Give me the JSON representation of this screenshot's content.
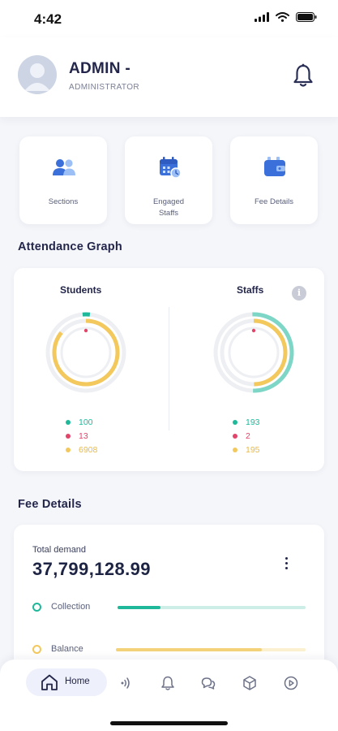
{
  "status_bar": {
    "time": "4:42"
  },
  "header": {
    "name": "ADMIN -",
    "role": "ADMINISTRATOR"
  },
  "quick_actions": [
    {
      "label": "Sections",
      "icon": "users-icon"
    },
    {
      "label": "Engaged Staffs",
      "icon": "calendar-clock-icon"
    },
    {
      "label": "Fee Details",
      "icon": "wallet-icon"
    }
  ],
  "attendance": {
    "title": "Attendance Graph",
    "students": {
      "label": "Students",
      "present": "100",
      "absent": "13",
      "other": "6908"
    },
    "staffs": {
      "label": "Staffs",
      "present": "193",
      "absent": "2",
      "other": "195"
    },
    "colors": {
      "present": "#1fb89a",
      "absent": "#e2456a",
      "other": "#f3c85c",
      "track": "#eeeff3"
    }
  },
  "fees": {
    "title": "Fee Details",
    "total_label": "Total demand",
    "total_amount": "37,799,128.99",
    "collection": {
      "label": "Collection",
      "fraction": 0.23
    },
    "balance": {
      "label": "Balance",
      "fraction": 0.77
    }
  },
  "bottom_nav": {
    "home_label": "Home",
    "items": [
      "broadcast-icon",
      "bell-icon",
      "chat-icon",
      "cube-icon",
      "play-circle-icon"
    ]
  }
}
